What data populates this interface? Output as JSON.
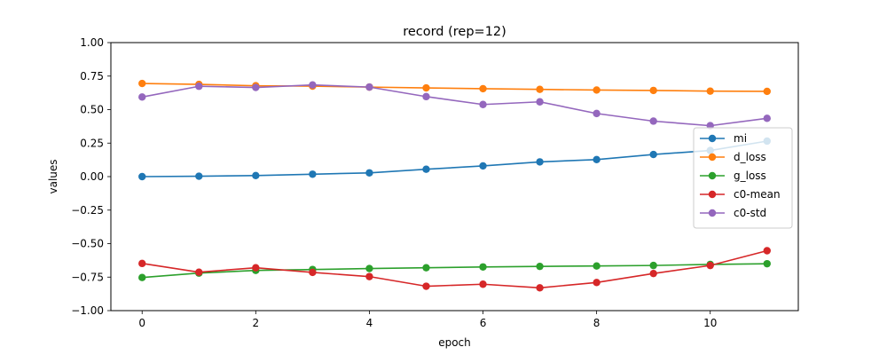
{
  "chart_data": {
    "type": "line",
    "title": "record (rep=12)",
    "xlabel": "epoch",
    "ylabel": "values",
    "x": [
      0,
      1,
      2,
      3,
      4,
      5,
      6,
      7,
      8,
      9,
      10,
      11
    ],
    "xlim": [
      -0.55,
      11.55
    ],
    "ylim": [
      -1.0,
      1.0
    ],
    "xticks": [
      0,
      2,
      4,
      6,
      8,
      10
    ],
    "yticks": [
      -1.0,
      -0.75,
      -0.5,
      -0.25,
      0.0,
      0.25,
      0.5,
      0.75,
      1.0
    ],
    "ytick_labels": [
      "−1.00",
      "−0.75",
      "−0.50",
      "−0.25",
      "0.00",
      "0.25",
      "0.50",
      "0.75",
      "1.00"
    ],
    "grid": false,
    "legend_position": "center-right",
    "series": [
      {
        "name": "mi",
        "color": "#1f77b4",
        "values": [
          0.0,
          0.003,
          0.008,
          0.018,
          0.028,
          0.055,
          0.08,
          0.11,
          0.127,
          0.165,
          0.195,
          0.265
        ]
      },
      {
        "name": "d_loss",
        "color": "#ff7f0e",
        "values": [
          0.695,
          0.688,
          0.678,
          0.675,
          0.668,
          0.662,
          0.656,
          0.651,
          0.646,
          0.643,
          0.638,
          0.636
        ]
      },
      {
        "name": "g_loss",
        "color": "#2ca02c",
        "values": [
          -0.753,
          -0.72,
          -0.7,
          -0.693,
          -0.686,
          -0.68,
          -0.674,
          -0.67,
          -0.667,
          -0.663,
          -0.655,
          -0.65
        ]
      },
      {
        "name": "c0-mean",
        "color": "#d62728",
        "values": [
          -0.648,
          -0.713,
          -0.68,
          -0.715,
          -0.746,
          -0.818,
          -0.803,
          -0.83,
          -0.79,
          -0.723,
          -0.663,
          -0.553
        ]
      },
      {
        "name": "c0-std",
        "color": "#9467bd",
        "values": [
          0.594,
          0.674,
          0.665,
          0.684,
          0.668,
          0.597,
          0.538,
          0.558,
          0.471,
          0.414,
          0.38,
          0.435
        ]
      }
    ]
  }
}
